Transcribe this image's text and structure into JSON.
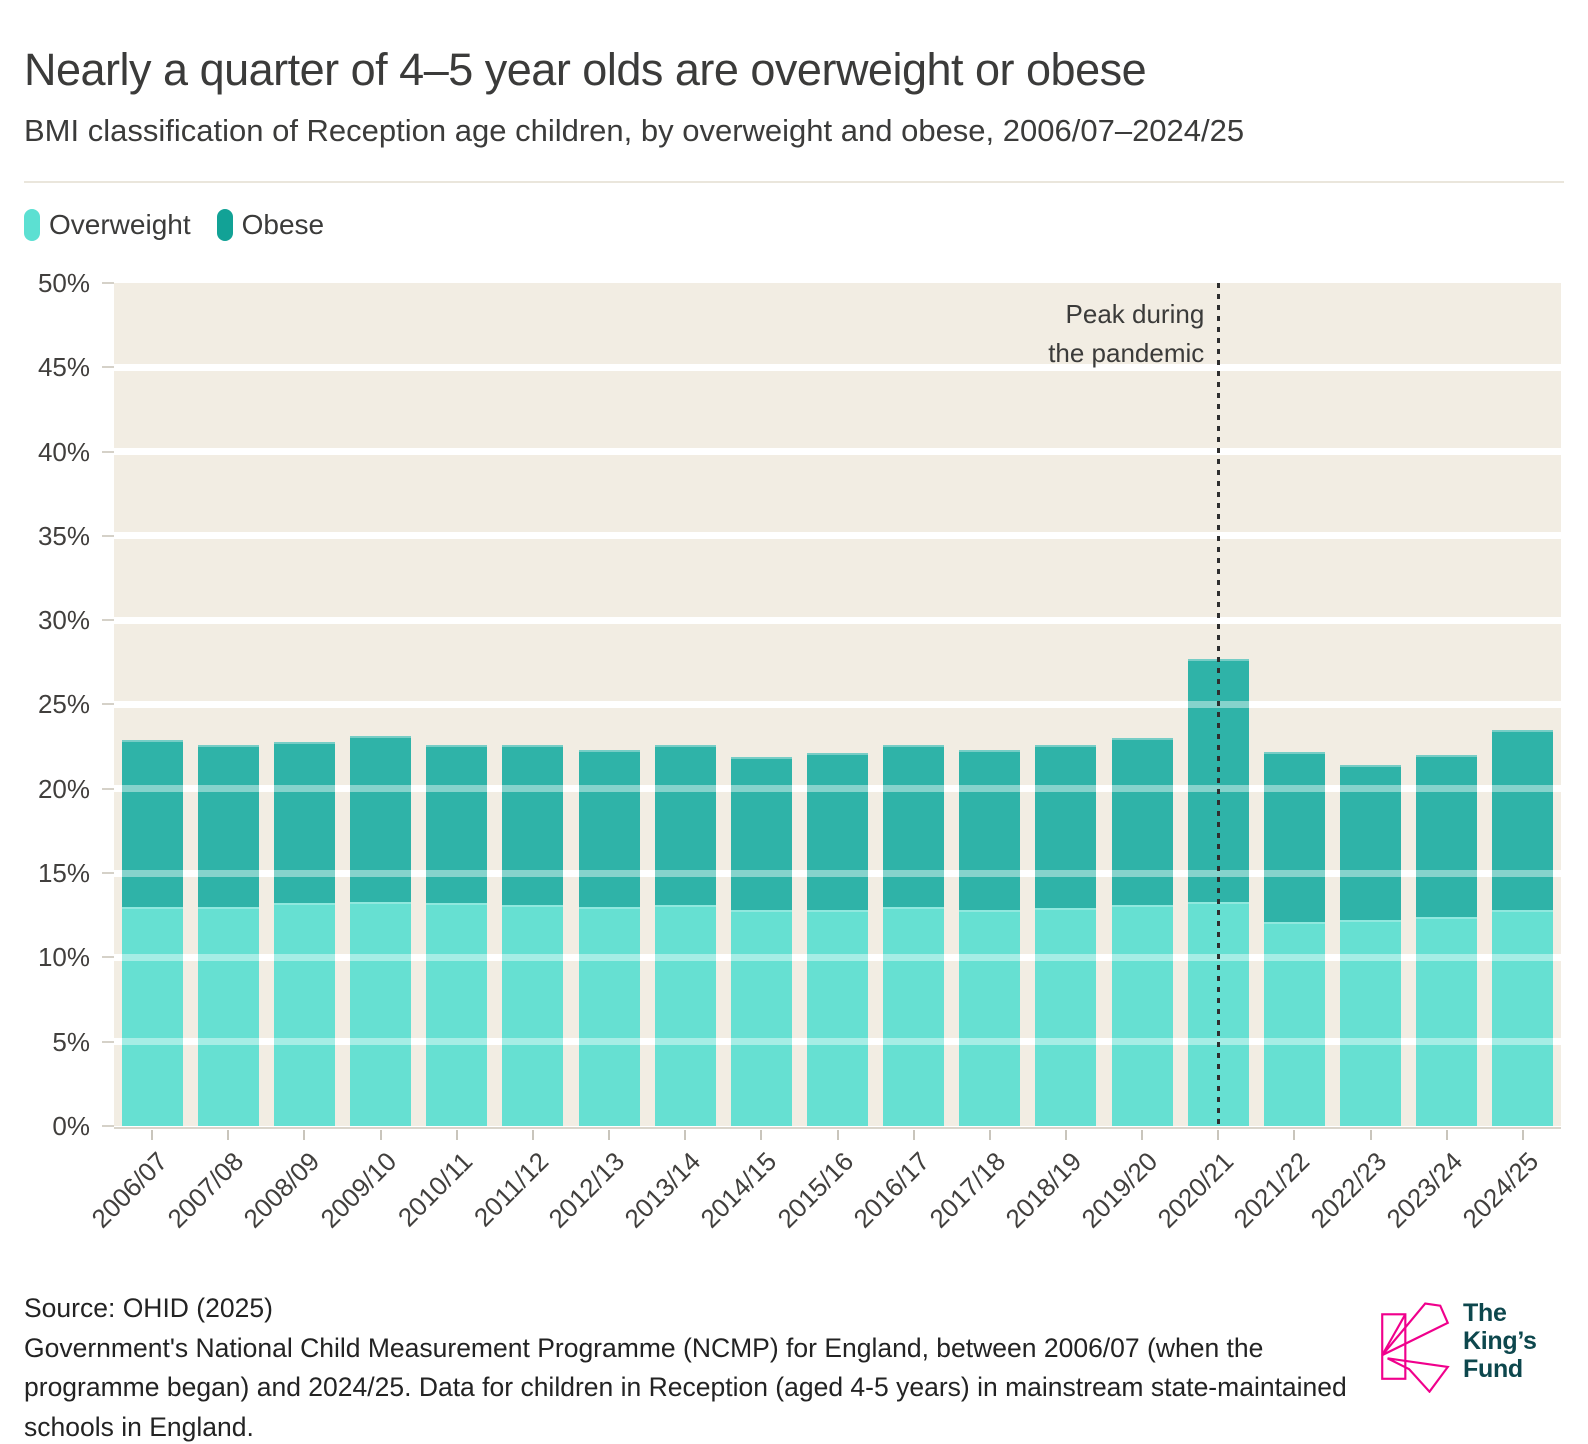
{
  "header": {
    "title": "Nearly a quarter of 4–5 year olds are overweight or obese",
    "subtitle": "BMI classification of Reception age children, by overweight and obese, 2006/07–2024/25"
  },
  "legend": {
    "items": [
      {
        "label": "Overweight",
        "color": "#5CE0D2"
      },
      {
        "label": "Obese",
        "color": "#12A296"
      }
    ]
  },
  "chart_data": {
    "type": "bar",
    "stacked": true,
    "title": "Nearly a quarter of 4–5 year olds are overweight or obese",
    "subtitle": "BMI classification of Reception age children, by overweight and obese, 2006/07–2024/25",
    "categories": [
      "2006/07",
      "2007/08",
      "2008/09",
      "2009/10",
      "2010/11",
      "2011/12",
      "2012/13",
      "2013/14",
      "2014/15",
      "2015/16",
      "2016/17",
      "2017/18",
      "2018/19",
      "2019/20",
      "2020/21",
      "2021/22",
      "2022/23",
      "2023/24",
      "2024/25"
    ],
    "series": [
      {
        "name": "Overweight",
        "color": "#66E0D2",
        "values": [
          13.0,
          13.0,
          13.2,
          13.3,
          13.2,
          13.1,
          13.0,
          13.1,
          12.8,
          12.8,
          13.0,
          12.8,
          12.9,
          13.1,
          13.3,
          12.1,
          12.2,
          12.4,
          12.8
        ]
      },
      {
        "name": "Obese",
        "color": "#2FB3A8",
        "values": [
          9.9,
          9.6,
          9.6,
          9.8,
          9.4,
          9.5,
          9.3,
          9.5,
          9.1,
          9.3,
          9.6,
          9.5,
          9.7,
          9.9,
          14.4,
          10.1,
          9.2,
          9.6,
          10.7
        ]
      }
    ],
    "xlabel": "",
    "ylabel": "",
    "ylim": [
      0,
      50
    ],
    "yticks": [
      "50%",
      "45%",
      "40%",
      "35%",
      "30%",
      "25%",
      "20%",
      "15%",
      "10%",
      "5%",
      "0%"
    ],
    "grid": true,
    "legend_position": "top-left",
    "plot_background": "#F2EDE3",
    "annotation": {
      "lines": [
        "Peak during",
        "the pandemic"
      ],
      "at_category": "2020/21"
    }
  },
  "footer": {
    "source": "Source: OHID (2025)",
    "note": "Government's National Child Measurement Programme (NCMP) for England, between 2006/07 (when the programme began) and 2024/25. Data for children in Reception (aged 4-5 years) in mainstream state-maintained schools in England.",
    "logo": {
      "lines": [
        "The",
        "King’s",
        "Fund"
      ],
      "pink": "#F0008C",
      "teal": "#0D474D"
    }
  }
}
